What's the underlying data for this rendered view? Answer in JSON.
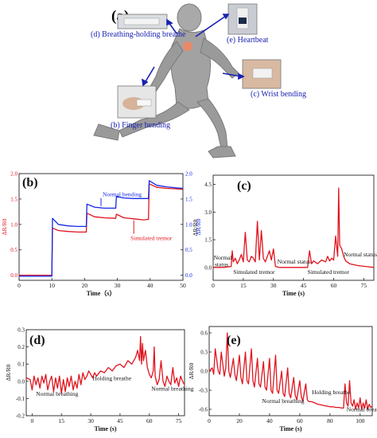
{
  "panel_a": {
    "label": "(a)",
    "callouts": [
      {
        "key": "breath",
        "text": "(d) Breathing-holding  breathe"
      },
      {
        "key": "heart",
        "text": "(e) Heartbeat"
      },
      {
        "key": "wrist",
        "text": "(c) Wrist bending"
      },
      {
        "key": "finger",
        "text": "(b) Finger bending"
      }
    ]
  },
  "colors": {
    "red": "#e0141e",
    "blue": "#1428e6",
    "arrow": "#1a22b0",
    "runner": "#9a9a9a"
  },
  "chart_data": [
    {
      "id": "b",
      "label": "(b)",
      "type": "line",
      "xlabel": "Time（s）",
      "ylabel_left": "ΔR/R0",
      "ylabel_right": "ΔR/R0",
      "xlim": [
        0,
        50
      ],
      "ylim_left": [
        -0.1,
        2.0
      ],
      "ylim_right": [
        -0.1,
        2.0
      ],
      "xticks": [
        0,
        10,
        20,
        30,
        40,
        50
      ],
      "yticks_left": [
        0.0,
        0.5,
        1.0,
        1.5,
        2.0
      ],
      "yticks_right": [
        0.0,
        0.5,
        1.0,
        1.5,
        2.0
      ],
      "tick_labels_left": [
        "0.0",
        "0.5",
        "1.0",
        "1.5",
        "2.0"
      ],
      "tick_labels_right": [
        "0.0",
        "0.5",
        "1.0",
        "1.5",
        "2.0"
      ],
      "annotations": [
        {
          "text": "Normal bending",
          "x": 25.5,
          "y": 1.55,
          "color": "#1428e6",
          "arrow_to": [
            25,
            1.36
          ]
        },
        {
          "text": "Simulated tremor",
          "x": 34,
          "y": 0.69,
          "color": "#e0141e",
          "arrow_to": [
            35,
            1.08
          ]
        }
      ],
      "series": [
        {
          "color": "#e0141e",
          "x": [
            0,
            10,
            10.2,
            12,
            15,
            18,
            20.5,
            20.7,
            23,
            26,
            29.5,
            29.7,
            32,
            35,
            38,
            39.5,
            39.7,
            42,
            45,
            48,
            50
          ],
          "y": [
            0.0,
            0.0,
            0.93,
            0.88,
            0.86,
            0.85,
            0.85,
            1.22,
            1.15,
            1.13,
            1.12,
            1.2,
            1.13,
            1.11,
            1.09,
            1.1,
            1.8,
            1.73,
            1.71,
            1.7,
            1.69
          ]
        },
        {
          "color": "#1428e6",
          "x": [
            0,
            10,
            10.2,
            12,
            15,
            18,
            20.5,
            20.7,
            23,
            26,
            29.5,
            29.7,
            32,
            35,
            38,
            39.5,
            39.7,
            42,
            45,
            48,
            50
          ],
          "y": [
            -0.02,
            -0.02,
            1.12,
            1.0,
            0.97,
            0.96,
            0.96,
            1.4,
            1.34,
            1.32,
            1.32,
            1.55,
            1.52,
            1.51,
            1.51,
            1.51,
            1.86,
            1.77,
            1.74,
            1.72,
            1.71
          ]
        }
      ]
    },
    {
      "id": "c",
      "label": "(c)",
      "type": "line",
      "xlabel": "Time (s)",
      "ylabel": "ΔR/R0",
      "xlim": [
        0,
        80
      ],
      "ylim": [
        -0.7,
        5.0
      ],
      "xticks": [
        0,
        15,
        30,
        45,
        60,
        75
      ],
      "yticks": [
        0.0,
        1.5,
        3.0,
        4.5
      ],
      "tick_labels_y": [
        "0.0",
        "1.5",
        "3.0",
        "4.5"
      ],
      "annotations": [
        {
          "text": "Normal",
          "x": 0.3,
          "y": 0.42
        },
        {
          "text": "status",
          "x": 0.8,
          "y": 0.05
        },
        {
          "text": "Simulated tremor",
          "x": 10,
          "y": -0.35
        },
        {
          "text": "Normal status",
          "x": 32,
          "y": 0.2
        },
        {
          "text": "Simulated tremor",
          "x": 47,
          "y": -0.35
        },
        {
          "text": "Normal status",
          "x": 65,
          "y": 0.6
        }
      ],
      "series": [
        {
          "color": "#e0141e",
          "x": [
            0,
            5,
            9,
            9.5,
            10,
            11,
            12,
            13,
            14,
            15,
            16,
            17,
            18,
            19,
            20,
            21,
            22,
            23,
            24,
            25,
            26,
            27,
            28,
            29,
            30,
            31,
            33,
            36,
            40,
            44,
            47,
            48,
            49,
            50,
            52,
            54,
            56,
            57,
            58,
            59,
            60,
            61,
            62,
            62.5,
            63,
            64,
            65,
            66,
            68,
            72,
            76,
            80
          ],
          "y": [
            0.0,
            0.0,
            0.05,
            0.9,
            0.3,
            0.5,
            0.2,
            0.4,
            0.7,
            0.3,
            1.9,
            0.4,
            0.3,
            0.6,
            0.5,
            0.3,
            2.5,
            0.4,
            2.0,
            0.5,
            0.3,
            0.6,
            0.9,
            0.4,
            1.0,
            0.05,
            0.0,
            0.0,
            0.0,
            0.0,
            0.0,
            0.9,
            0.2,
            0.35,
            0.2,
            0.4,
            0.3,
            0.6,
            0.35,
            0.5,
            0.4,
            1.7,
            0.6,
            4.3,
            1.2,
            1.0,
            0.6,
            0.35,
            0.2,
            0.1,
            0.05,
            0.0
          ]
        }
      ]
    },
    {
      "id": "d",
      "label": "(d)",
      "type": "line",
      "xlabel": "Time (s)",
      "ylabel": "ΔR/R0",
      "xlim": [
        -3,
        78
      ],
      "ylim": [
        -0.2,
        0.3
      ],
      "xticks": [
        0,
        15,
        30,
        45,
        60,
        75
      ],
      "yticks": [
        -0.2,
        -0.1,
        0.0,
        0.1,
        0.2,
        0.3
      ],
      "tick_labels_y": [
        "-0.2",
        "-0.1",
        "0.0",
        "0.1",
        "0.2",
        "0.3"
      ],
      "annotations": [
        {
          "text": "Normal breathing",
          "x": 2,
          "y": -0.085
        },
        {
          "text": "Holding breathe",
          "x": 31,
          "y": 0.005
        },
        {
          "text": "Normal breathing",
          "x": 61,
          "y": -0.055
        }
      ],
      "series": [
        {
          "color": "#e0141e",
          "x": [
            -3,
            -1,
            0,
            1,
            2,
            3,
            4,
            5,
            6,
            7,
            8,
            9,
            10,
            11,
            12,
            13,
            14,
            15,
            16,
            17,
            18,
            19,
            20,
            21,
            22,
            23,
            24,
            25,
            26,
            27,
            28,
            29,
            30,
            31,
            32,
            33,
            35,
            37,
            39,
            41,
            43,
            45,
            47,
            49,
            51,
            53,
            54,
            55,
            55.5,
            56,
            56.5,
            57,
            58,
            59,
            60,
            61,
            62,
            62.5,
            63,
            64,
            65,
            66,
            67,
            68,
            69,
            70,
            71,
            72,
            73,
            74,
            75,
            76,
            77,
            78
          ],
          "y": [
            0.02,
            0.01,
            -0.05,
            0.03,
            -0.02,
            0.02,
            -0.04,
            0.03,
            -0.01,
            0.04,
            -0.05,
            0.0,
            0.03,
            -0.06,
            0.02,
            -0.04,
            0.03,
            -0.07,
            0.01,
            -0.06,
            0.02,
            -0.03,
            0.03,
            -0.05,
            0.0,
            -0.04,
            0.04,
            -0.02,
            0.05,
            0.01,
            0.03,
            0.06,
            0.04,
            0.02,
            0.05,
            0.03,
            0.06,
            0.05,
            0.08,
            0.06,
            0.09,
            0.1,
            0.08,
            0.12,
            0.1,
            0.14,
            0.18,
            0.12,
            0.26,
            0.1,
            0.22,
            0.12,
            0.18,
            0.08,
            0.04,
            0.02,
            0.06,
            0.2,
            0.03,
            -0.02,
            0.01,
            0.12,
            0.0,
            -0.03,
            0.03,
            0.0,
            -0.02,
            0.08,
            -0.01,
            0.02,
            -0.03,
            0.03,
            0.0,
            -0.02
          ]
        }
      ]
    },
    {
      "id": "e",
      "label": "(e)",
      "type": "line",
      "xlabel": "Time (s)",
      "ylabel": "ΔR/R0",
      "xlim": [
        0,
        108
      ],
      "ylim": [
        -0.7,
        0.7
      ],
      "xticks": [
        0,
        20,
        40,
        60,
        80,
        100
      ],
      "yticks": [
        -0.6,
        -0.3,
        0.0,
        0.3,
        0.6
      ],
      "tick_labels_y": [
        "-0.6",
        "-0.3",
        "0.0",
        "0.3",
        "0.6"
      ],
      "annotations": [
        {
          "text": "Holding breathe",
          "x": 68,
          "y": -0.36
        },
        {
          "text": "Normal breathing",
          "x": 35,
          "y": -0.5
        },
        {
          "text": "Normal breathing",
          "x": 91,
          "y": -0.63
        }
      ],
      "series": [
        {
          "color": "#e0141e",
          "x": [
            0,
            2,
            3,
            4,
            6,
            7,
            8,
            10,
            11,
            12,
            13,
            14,
            16,
            17,
            18,
            20,
            21,
            22,
            24,
            25,
            26,
            28,
            29,
            30,
            32,
            33,
            34,
            36,
            37,
            38,
            40,
            41,
            42,
            44,
            45,
            46,
            48,
            49,
            50,
            52,
            53,
            54,
            56,
            57,
            58,
            60,
            61,
            62,
            64,
            65,
            66,
            68,
            70,
            72,
            74,
            76,
            78,
            80,
            82,
            84,
            86,
            88,
            89,
            90,
            91,
            92,
            93,
            94,
            95,
            96,
            97,
            98,
            99,
            100,
            101,
            102,
            103,
            104,
            105,
            106,
            107,
            108
          ],
          "y": [
            0.0,
            0.05,
            -0.05,
            0.35,
            0.0,
            -0.05,
            0.3,
            -0.08,
            0.05,
            0.6,
            0.0,
            -0.1,
            0.2,
            -0.05,
            -0.15,
            0.25,
            -0.1,
            -0.2,
            0.3,
            -0.15,
            -0.2,
            0.35,
            -0.15,
            -0.25,
            0.2,
            -0.2,
            -0.25,
            0.15,
            -0.25,
            -0.3,
            0.2,
            -0.3,
            -0.35,
            0.25,
            -0.3,
            -0.35,
            0.0,
            -0.35,
            -0.4,
            0.05,
            -0.35,
            -0.42,
            -0.1,
            -0.38,
            -0.45,
            -0.15,
            -0.4,
            -0.47,
            -0.2,
            -0.45,
            -0.48,
            -0.48,
            -0.5,
            -0.52,
            -0.53,
            -0.54,
            -0.55,
            -0.56,
            -0.56,
            -0.57,
            -0.57,
            -0.58,
            -0.58,
            -0.2,
            -0.5,
            -0.55,
            -0.15,
            -0.5,
            -0.55,
            -0.45,
            -0.6,
            -0.5,
            -0.58,
            -0.42,
            -0.6,
            -0.5,
            -0.58,
            -0.45,
            -0.6,
            -0.52,
            -0.57,
            -0.55
          ]
        }
      ]
    }
  ]
}
